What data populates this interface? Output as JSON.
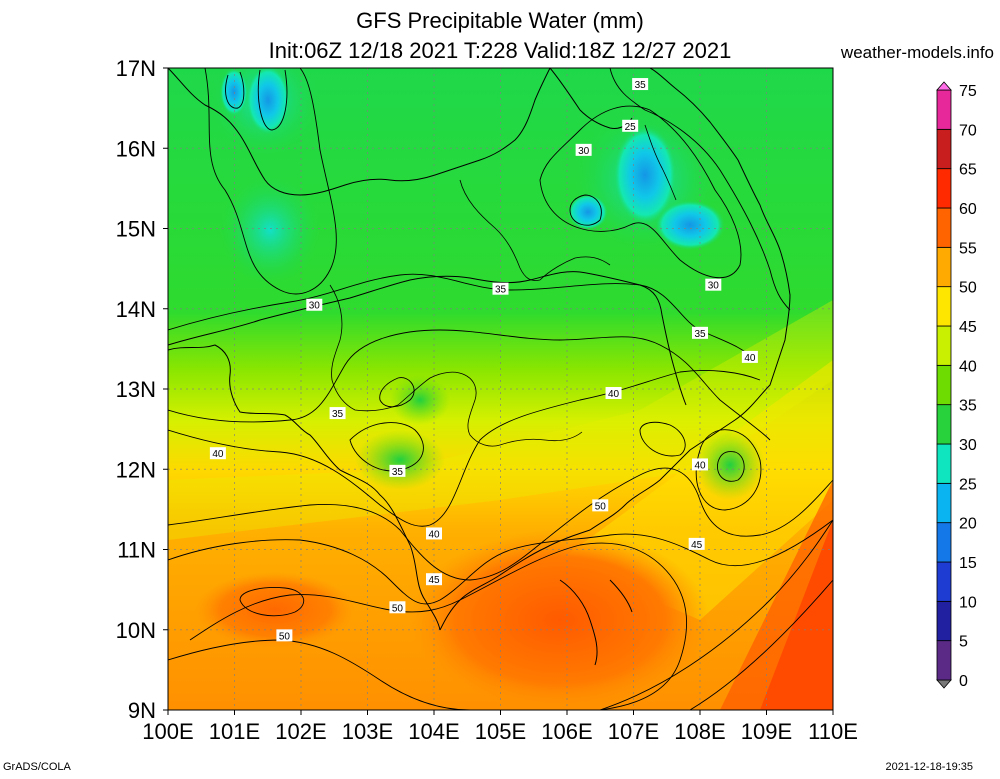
{
  "header": {
    "title": "GFS Precipitable Water (mm)",
    "subtitle": "Init:06Z 12/18 2021 T:228 Valid:18Z 12/27 2021",
    "site": "weather-models.info"
  },
  "footer": {
    "left": "GrADS/COLA",
    "right": "2021-12-18-19:35"
  },
  "chart_data": {
    "type": "heatmap",
    "title": "GFS Precipitable Water (mm)",
    "subtitle": "Init:06Z 12/18 2021 T:228 Valid:18Z 12/27 2021",
    "x_ticks": [
      "100E",
      "101E",
      "102E",
      "103E",
      "104E",
      "105E",
      "106E",
      "107E",
      "108E",
      "109E",
      "110E"
    ],
    "y_ticks": [
      "17N",
      "16N",
      "15N",
      "14N",
      "13N",
      "12N",
      "11N",
      "10N",
      "9N"
    ],
    "xlim": [
      100,
      110
    ],
    "ylim": [
      9,
      17
    ],
    "grid": true,
    "colorbar": {
      "ticks": [
        "75",
        "70",
        "65",
        "60",
        "55",
        "50",
        "45",
        "40",
        "35",
        "30",
        "25",
        "20",
        "15",
        "10",
        "5",
        "0"
      ],
      "values": [
        0,
        5,
        10,
        15,
        20,
        25,
        30,
        35,
        40,
        45,
        50,
        55,
        60,
        65,
        70,
        75
      ],
      "colors": [
        "#787878",
        "#5a2a86",
        "#2020a0",
        "#1e3cd2",
        "#1478e8",
        "#0ab4f0",
        "#0fe6c0",
        "#28d23c",
        "#6edc00",
        "#c8f000",
        "#ffe600",
        "#ffaa00",
        "#ff6400",
        "#ff2a00",
        "#c81e1e",
        "#e6289a",
        "#ff6ee6"
      ]
    },
    "contour_labels": [
      {
        "text": "35",
        "lon": 107.1,
        "lat": 16.8
      },
      {
        "text": "25",
        "lon": 106.95,
        "lat": 16.28
      },
      {
        "text": "30",
        "lon": 106.25,
        "lat": 15.98
      },
      {
        "text": "30",
        "lon": 102.2,
        "lat": 14.05
      },
      {
        "text": "35",
        "lon": 105.0,
        "lat": 14.25
      },
      {
        "text": "30",
        "lon": 108.2,
        "lat": 14.3
      },
      {
        "text": "35",
        "lon": 108.0,
        "lat": 13.7
      },
      {
        "text": "40",
        "lon": 108.75,
        "lat": 13.4
      },
      {
        "text": "35",
        "lon": 102.55,
        "lat": 12.7
      },
      {
        "text": "40",
        "lon": 106.7,
        "lat": 12.95
      },
      {
        "text": "40",
        "lon": 100.75,
        "lat": 12.2
      },
      {
        "text": "40",
        "lon": 108.0,
        "lat": 12.06
      },
      {
        "text": "35",
        "lon": 103.45,
        "lat": 11.98
      },
      {
        "text": "50",
        "lon": 106.5,
        "lat": 11.55
      },
      {
        "text": "40",
        "lon": 104.0,
        "lat": 11.2
      },
      {
        "text": "45",
        "lon": 107.95,
        "lat": 11.07
      },
      {
        "text": "45",
        "lon": 104.0,
        "lat": 10.63
      },
      {
        "text": "50",
        "lon": 103.45,
        "lat": 10.28
      },
      {
        "text": "50",
        "lon": 101.75,
        "lat": 9.93
      }
    ]
  }
}
